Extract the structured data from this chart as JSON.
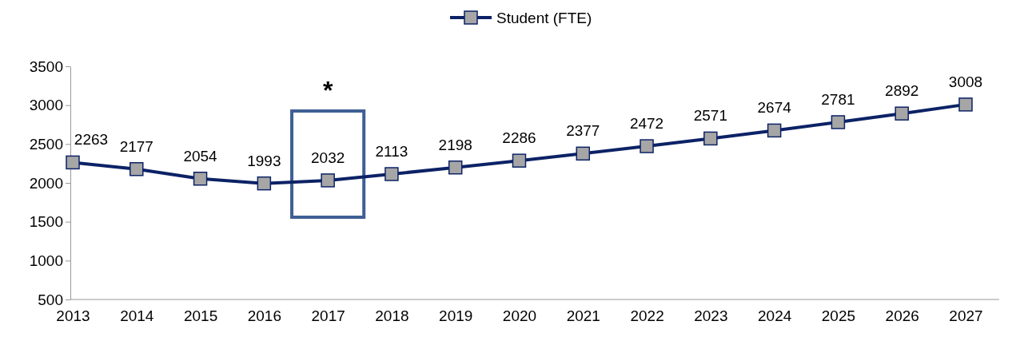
{
  "chart_data": {
    "type": "line",
    "categories": [
      "2013",
      "2014",
      "2015",
      "2016",
      "2017",
      "2018",
      "2019",
      "2020",
      "2021",
      "2022",
      "2023",
      "2024",
      "2025",
      "2026",
      "2027"
    ],
    "series": [
      {
        "name": "Student (FTE)",
        "color": "#0c2266",
        "values": [
          2263,
          2177,
          2054,
          1993,
          2032,
          2113,
          2198,
          2286,
          2377,
          2472,
          2571,
          2674,
          2781,
          2892,
          3008
        ]
      }
    ],
    "ylim": [
      500,
      3500
    ],
    "yticks": [
      500,
      1000,
      1500,
      2000,
      2500,
      3000,
      3500
    ],
    "grid": false,
    "legend": "top",
    "marker": "square",
    "line_style": "solid",
    "data_labels": true,
    "bands": [
      {
        "axis": "x",
        "from": "2017",
        "to": "2017",
        "label": "*"
      }
    ]
  }
}
